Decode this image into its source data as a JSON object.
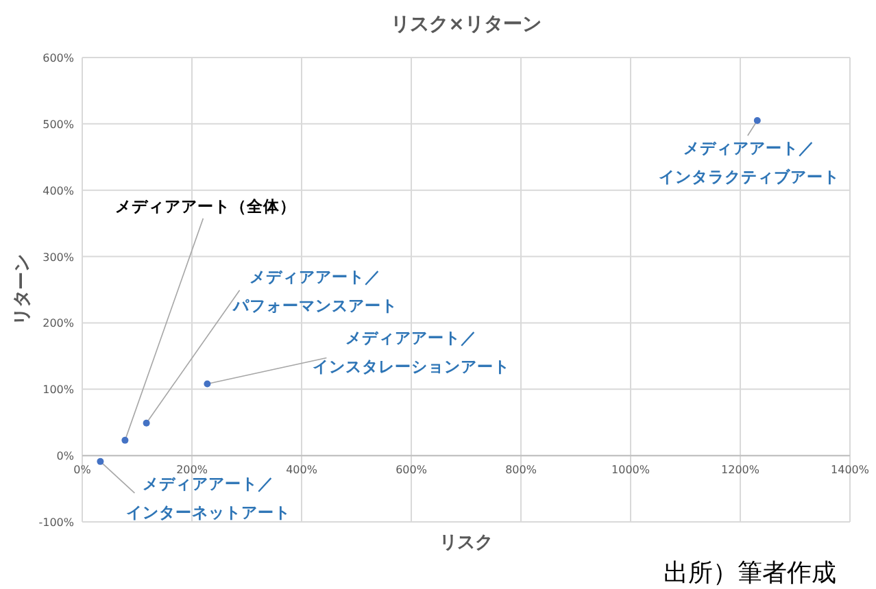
{
  "chart_data": {
    "type": "scatter",
    "title": "リスク×リターン",
    "xlabel": "リスク",
    "ylabel": "リターン",
    "series": [
      {
        "color": "#4472c4",
        "x": [
          33,
          78,
          117,
          228,
          1231
        ],
        "values": [
          -9,
          23,
          49,
          108,
          505
        ]
      }
    ],
    "xlim": [
      0,
      1400
    ],
    "ylim": [
      -100,
      600
    ],
    "xticks": [
      {
        "value": 0,
        "label": "0%"
      },
      {
        "value": 200,
        "label": "200%"
      },
      {
        "value": 400,
        "label": "400%"
      },
      {
        "value": 600,
        "label": "600%"
      },
      {
        "value": 800,
        "label": "800%"
      },
      {
        "value": 1000,
        "label": "1000%"
      },
      {
        "value": 1200,
        "label": "1200%"
      },
      {
        "value": 1400,
        "label": "1400%"
      }
    ],
    "yticks": [
      {
        "value": -100,
        "label": "-100%"
      },
      {
        "value": 0,
        "label": "0%"
      },
      {
        "value": 100,
        "label": "100%"
      },
      {
        "value": 200,
        "label": "200%"
      },
      {
        "value": 300,
        "label": "300%"
      },
      {
        "value": 400,
        "label": "400%"
      },
      {
        "value": 500,
        "label": "500%"
      },
      {
        "value": 600,
        "label": "600%"
      }
    ],
    "grid": true,
    "marker": "circle",
    "annotations": [
      {
        "text": "メディアアート／インターネットアート",
        "x": 33,
        "y": -9
      },
      {
        "text": "メディアアート（全体）",
        "x": 78,
        "y": 23
      },
      {
        "text": "メディアアート／パフォーマンスアート",
        "x": 117,
        "y": 49
      },
      {
        "text": "メディアアート／インスタレーションアート",
        "x": 228,
        "y": 108
      },
      {
        "text": "メディアアート／インタラクティブアート",
        "x": 1231,
        "y": 505
      },
      "出所）筆者作成"
    ]
  }
}
